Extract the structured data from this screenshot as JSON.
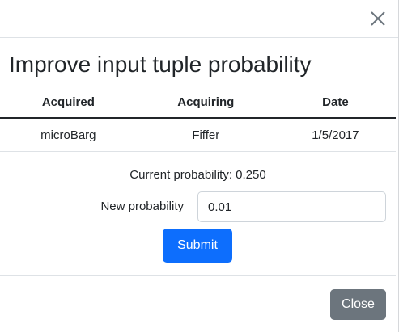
{
  "modal": {
    "title": "Improve input tuple probability",
    "close_icon": "close-x-icon"
  },
  "table": {
    "headers": [
      "Acquired",
      "Acquiring",
      "Date"
    ],
    "rows": [
      [
        "microBarg",
        "Fiffer",
        "1/5/2017"
      ]
    ]
  },
  "form": {
    "current_probability_text": "Current probability: 0.250",
    "new_probability_label": "New probability",
    "new_probability_value": "0.01",
    "submit_label": "Submit"
  },
  "footer": {
    "close_label": "Close"
  },
  "colors": {
    "primary": "#0d6efd",
    "secondary": "#6c757d"
  }
}
